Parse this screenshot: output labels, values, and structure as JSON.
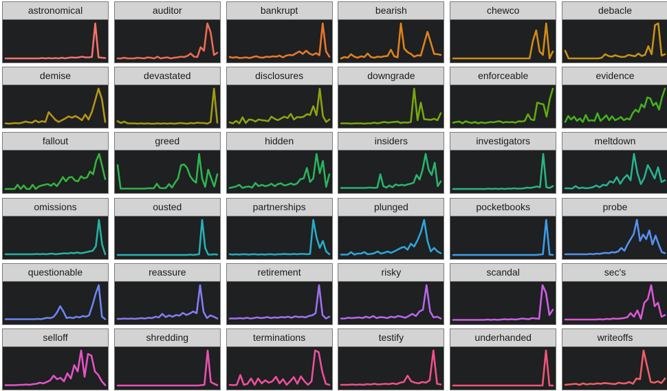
{
  "chart_data": [
    {
      "type": "line",
      "title": "astronomical",
      "color": "#f4736b",
      "values": [
        0,
        0,
        0,
        0,
        0,
        0,
        0,
        0,
        0,
        0,
        0,
        0.01,
        0,
        0.01,
        0,
        0.01,
        0,
        0.02,
        0,
        0.02,
        0.03,
        0.02,
        0.03,
        0.05,
        0.03,
        0.03,
        0.04,
        1.0,
        0.03,
        0.02,
        0.01
      ]
    },
    {
      "type": "line",
      "title": "auditor",
      "color": "#ef6b55",
      "values": [
        0,
        0,
        0.02,
        0,
        0,
        0,
        0.02,
        0.01,
        0,
        0.03,
        0.02,
        0,
        0.05,
        0,
        0.02,
        0.03,
        0,
        0.02,
        0.03,
        0.05,
        0.04,
        0.07,
        0.14,
        0.05,
        0.04,
        0.32,
        0.22,
        1.0,
        0.75,
        0.1,
        0.16
      ]
    },
    {
      "type": "line",
      "title": "bankrupt",
      "color": "#e9772c",
      "values": [
        0.04,
        0.02,
        0.04,
        0.01,
        0.02,
        0.03,
        0.01,
        0.04,
        0.06,
        0.03,
        0.02,
        0.05,
        0.04,
        0.06,
        0.05,
        0.08,
        0.03,
        0.08,
        0.1,
        0.09,
        0.15,
        0.2,
        0.13,
        0.22,
        0.14,
        0.1,
        0.15,
        0.09,
        1.0,
        0.2,
        0.05
      ]
    },
    {
      "type": "line",
      "title": "bearish",
      "color": "#e0821c",
      "values": [
        0,
        0.04,
        0.02,
        0.12,
        0.05,
        0.02,
        0.06,
        0.04,
        0.14,
        0.04,
        0.02,
        0.05,
        0.04,
        0.06,
        0.07,
        0.25,
        0.06,
        0.03,
        1.0,
        0.28,
        0.18,
        0.13,
        0.05,
        0.09,
        0.08,
        0.42,
        0.76,
        0.45,
        0.13,
        0.12,
        0.1
      ]
    },
    {
      "type": "line",
      "title": "chewco",
      "color": "#d18b18",
      "values": [
        0,
        0,
        0,
        0,
        0,
        0,
        0,
        0,
        0,
        0,
        0,
        0,
        0,
        0,
        0,
        0,
        0,
        0,
        0,
        0,
        0,
        0,
        0,
        0,
        0.5,
        0.8,
        0.2,
        0.1,
        1.0,
        0,
        0.2
      ]
    },
    {
      "type": "line",
      "title": "debacle",
      "color": "#c79318",
      "values": [
        0.22,
        0,
        0,
        0,
        0,
        0,
        0,
        0,
        0,
        0,
        0,
        0.02,
        0.12,
        0.07,
        0.05,
        0.09,
        0.06,
        0.04,
        0.05,
        0.1,
        0.08,
        0.06,
        0.14,
        0.07,
        0.1,
        0.35,
        0.12,
        0.95,
        1.0,
        0.08,
        0.12
      ]
    },
    {
      "type": "line",
      "title": "demise",
      "color": "#b69616",
      "values": [
        0.01,
        0,
        0.01,
        0.02,
        0.01,
        0.03,
        0.06,
        0.04,
        0.03,
        0.09,
        0.04,
        0.07,
        0.05,
        0.33,
        0.22,
        0.11,
        0.05,
        0.1,
        0.15,
        0.21,
        0.17,
        0.22,
        0.17,
        0.1,
        0.26,
        0.12,
        0.34,
        0.67,
        1.0,
        0.7,
        0.05
      ]
    },
    {
      "type": "line",
      "title": "devastated",
      "color": "#a29c12",
      "values": [
        0.07,
        0.02,
        0.06,
        0.01,
        0.01,
        0.01,
        0,
        0.01,
        0,
        0.01,
        0,
        0,
        0.01,
        0,
        0.01,
        0,
        0.01,
        0,
        0.01,
        0.02,
        0.01,
        0,
        0.02,
        0.01,
        0.03,
        0.02,
        0.02,
        0,
        0.05,
        1.0,
        0.03
      ]
    },
    {
      "type": "line",
      "title": "disclosures",
      "color": "#8fa20f",
      "values": [
        0.04,
        0.01,
        0.08,
        0.01,
        0.18,
        0.02,
        0.12,
        0.11,
        0.06,
        0.12,
        0.1,
        0.09,
        0.07,
        0.2,
        0.14,
        0.1,
        0.15,
        0.2,
        0.16,
        0.28,
        0.12,
        0.19,
        0.18,
        0.2,
        0.27,
        0.25,
        0.5,
        0.24,
        1.0,
        0.22,
        0.05,
        0.12
      ]
    },
    {
      "type": "line",
      "title": "downgrade",
      "color": "#78a70f",
      "values": [
        0.01,
        0.01,
        0.01,
        0,
        0.01,
        0.01,
        0.01,
        0,
        0.01,
        0.01,
        0.03,
        0.01,
        0.03,
        0.05,
        0.03,
        0.04,
        0.05,
        0.06,
        0.02,
        0.04,
        0.03,
        0.05,
        1.0,
        0.1,
        0.6,
        0.13,
        0.12,
        0.11,
        0.14,
        0.1,
        0.3
      ]
    },
    {
      "type": "line",
      "title": "enforceable",
      "color": "#5fac0f",
      "values": [
        0.03,
        0.05,
        0.06,
        0.01,
        0.07,
        0.04,
        0.02,
        0.05,
        0.01,
        0.04,
        0.02,
        0.03,
        0.05,
        0.04,
        0.06,
        0.07,
        0.03,
        0.05,
        0.04,
        0.05,
        0.03,
        0.07,
        0.06,
        0.08,
        0.27,
        0.12,
        0.1,
        0.6,
        0.57,
        0.55,
        0.2,
        0.7,
        1.0
      ]
    },
    {
      "type": "line",
      "title": "evidence",
      "color": "#45b01f",
      "values": [
        0.05,
        0.22,
        0.12,
        0.2,
        0.08,
        0.15,
        0.05,
        0.25,
        0.08,
        0.1,
        0.08,
        0.3,
        0.08,
        0.15,
        0.24,
        0.1,
        0.21,
        0.1,
        0.14,
        0.19,
        0.1,
        0.15,
        0.12,
        0.3,
        0.4,
        0.33,
        0.55,
        0.46,
        0.75,
        0.72,
        0.52,
        0.6,
        0.4,
        0.75,
        1.0
      ]
    },
    {
      "type": "line",
      "title": "fallout",
      "color": "#34b33d",
      "values": [
        0,
        0,
        0,
        0,
        0.12,
        0,
        0.1,
        0,
        0,
        0.12,
        0,
        0.07,
        0.1,
        0.12,
        0.14,
        0.09,
        0.16,
        0.08,
        0.2,
        0.34,
        0.22,
        0.33,
        0.34,
        0.24,
        0.22,
        0.36,
        0.3,
        0.33,
        0.5,
        0.42,
        0.8,
        1.0,
        0.65,
        0.28
      ]
    },
    {
      "type": "line",
      "title": "greed",
      "color": "#2eb44e",
      "values": [
        0.68,
        0.01,
        0.01,
        0.01,
        0.01,
        0.01,
        0.01,
        0.01,
        0.01,
        0.01,
        0.02,
        0.02,
        0.02,
        0.15,
        0.03,
        0.02,
        0.03,
        0.14,
        0.04,
        0.18,
        0.3,
        0.68,
        0.7,
        0.6,
        0.37,
        0.25,
        0.18,
        1.0,
        0.3,
        0.06,
        0.55,
        0.3,
        0.07,
        0.42
      ]
    },
    {
      "type": "line",
      "title": "hidden",
      "color": "#2ab45c",
      "values": [
        0.03,
        0.05,
        0.07,
        0.12,
        0.03,
        0.06,
        0.07,
        0.04,
        0.17,
        0.08,
        0.12,
        0.08,
        0.1,
        0.15,
        0.08,
        0.14,
        0.16,
        0.1,
        0.12,
        0.16,
        0.12,
        0.16,
        0.28,
        0.3,
        0.6,
        0.2,
        0.3,
        1.0,
        0.45,
        0.8,
        0.06,
        0.42
      ]
    },
    {
      "type": "line",
      "title": "insiders",
      "color": "#29b46d",
      "values": [
        0.03,
        0.03,
        0.03,
        0.03,
        0.03,
        0.03,
        0.03,
        0.03,
        0.03,
        0.04,
        0.04,
        0.03,
        0.04,
        0.42,
        0.08,
        0.04,
        0.1,
        0.05,
        0.13,
        0.1,
        0.12,
        0.1,
        0.13,
        0.15,
        0.18,
        0.4,
        0.27,
        0.55,
        1.0,
        0.55,
        0.4,
        0.75,
        0.08,
        0.22
      ]
    },
    {
      "type": "line",
      "title": "investigators",
      "color": "#28b57f",
      "values": [
        0,
        0,
        0,
        0,
        0,
        0,
        0,
        0,
        0,
        0,
        0,
        0.01,
        0,
        0.01,
        0,
        0.01,
        0,
        0.01,
        0.01,
        0.02,
        0.01,
        0.01,
        0.02,
        0.04,
        0.03,
        0.05,
        0.07,
        0.05,
        1.0,
        0.05,
        0.03,
        0.08
      ]
    },
    {
      "type": "line",
      "title": "meltdown",
      "color": "#27b392",
      "values": [
        0.02,
        0.02,
        0.01,
        0.08,
        0.02,
        0.04,
        0.02,
        0.03,
        0.05,
        0.1,
        0.05,
        0.12,
        0.1,
        0.22,
        0.18,
        0.34,
        0.15,
        0.3,
        0.4,
        0.25,
        1.0,
        0.45,
        0.14,
        0.32,
        0.68,
        0.5,
        0.3,
        0.62,
        0.2,
        0.25
      ]
    },
    {
      "type": "line",
      "title": "omissions",
      "color": "#26b2a4",
      "values": [
        0.02,
        0.02,
        0.02,
        0.02,
        0.02,
        0.02,
        0.02,
        0.02,
        0.02,
        0.02,
        0.03,
        0.02,
        0.03,
        0.02,
        0.03,
        0.04,
        0.02,
        0.03,
        0.04,
        0.05,
        0.04,
        0.06,
        0.05,
        0.07,
        0.05,
        0.06,
        0.08,
        0.1,
        0.12,
        0.25,
        1.0,
        0.3,
        0.02
      ]
    },
    {
      "type": "line",
      "title": "ousted",
      "color": "#25b0b6",
      "values": [
        0,
        0,
        0,
        0,
        0,
        0,
        0,
        0,
        0,
        0,
        0,
        0,
        0,
        0,
        0,
        0,
        0,
        0,
        0,
        0,
        0,
        0,
        0,
        0,
        0.01,
        0,
        0.01,
        0.02,
        1.0,
        0.2,
        0.01,
        0.01,
        0.02,
        0.01
      ]
    },
    {
      "type": "line",
      "title": "partnerships",
      "color": "#27acc7",
      "values": [
        0.02,
        0.01,
        0.02,
        0.01,
        0.02,
        0.02,
        0.01,
        0.02,
        0.02,
        0.01,
        0.02,
        0.01,
        0.02,
        0.02,
        0.01,
        0.02,
        0.02,
        0.03,
        0.02,
        0.02,
        0.03,
        0.02,
        0.03,
        0.03,
        0.02,
        0.03,
        1.0,
        0.5,
        0.2,
        0.4,
        0.1,
        0.02
      ]
    },
    {
      "type": "line",
      "title": "plunged",
      "color": "#2ca6db",
      "values": [
        0.01,
        0.01,
        0.01,
        0.08,
        0.01,
        0.04,
        0.04,
        0.08,
        0.02,
        0.03,
        0.05,
        0.1,
        0.04,
        0.06,
        0.1,
        0.06,
        0.1,
        0.15,
        0.2,
        0.23,
        0.15,
        0.32,
        0.24,
        0.42,
        0.65,
        1.0,
        0.4,
        0.1,
        0.2,
        0.1,
        0.05
      ]
    },
    {
      "type": "line",
      "title": "pocketbooks",
      "color": "#3b9ded",
      "values": [
        0,
        0,
        0,
        0,
        0,
        0,
        0,
        0,
        0,
        0,
        0,
        0,
        0,
        0,
        0,
        0,
        0,
        0,
        0,
        0,
        0,
        0,
        0,
        0,
        0,
        0,
        0.01,
        0.02,
        1.0,
        0.01,
        0
      ]
    },
    {
      "type": "line",
      "title": "probe",
      "color": "#5591f2",
      "values": [
        0.02,
        0.02,
        0.02,
        0.02,
        0.02,
        0.02,
        0.02,
        0.02,
        0.03,
        0.02,
        0.04,
        0.03,
        0.05,
        0.06,
        0.05,
        0.08,
        0.07,
        0.1,
        0.2,
        0.12,
        0.3,
        0.45,
        0.6,
        1.0,
        0.4,
        0.58,
        0.45,
        0.7,
        0.3,
        0.55,
        0.3,
        0.08,
        0.05
      ]
    },
    {
      "type": "line",
      "title": "questionable",
      "color": "#6d86f3",
      "values": [
        0.03,
        0.03,
        0.03,
        0.03,
        0.03,
        0.03,
        0.03,
        0.03,
        0.03,
        0.03,
        0.04,
        0.03,
        0.05,
        0.07,
        0.06,
        0.1,
        0.22,
        0.4,
        0.25,
        0.06,
        0.08,
        0.06,
        0.1,
        0.08,
        0.12,
        0.1,
        0.14,
        0.42,
        0.75,
        1.0,
        0.1,
        0.03
      ]
    },
    {
      "type": "line",
      "title": "reassure",
      "color": "#877bf3",
      "values": [
        0.04,
        0.04,
        0.05,
        0.04,
        0.05,
        0.04,
        0.05,
        0.06,
        0.05,
        0.07,
        0.06,
        0.1,
        0.08,
        0.18,
        0.09,
        0.14,
        0.1,
        0.15,
        0.13,
        0.21,
        0.15,
        0.19,
        0.25,
        0.2,
        1.0,
        0.24,
        0.06,
        0.14,
        0.1,
        0.05
      ]
    },
    {
      "type": "line",
      "title": "retirement",
      "color": "#9f70f1",
      "values": [
        0.05,
        0.05,
        0.05,
        0.06,
        0.05,
        0.07,
        0.05,
        0.06,
        0.08,
        0.06,
        0.07,
        0.09,
        0.06,
        0.08,
        0.07,
        0.09,
        0.08,
        0.1,
        0.07,
        0.11,
        0.09,
        0.1,
        0.08,
        0.12,
        0.14,
        0.2,
        1.0,
        0.15,
        0.05,
        0.1
      ]
    },
    {
      "type": "line",
      "title": "risky",
      "color": "#b766ec",
      "values": [
        0.05,
        0.05,
        0.07,
        0.06,
        0.07,
        0.08,
        0.06,
        0.1,
        0.07,
        0.12,
        0.06,
        0.09,
        0.08,
        0.06,
        0.1,
        0.08,
        0.12,
        0.1,
        0.07,
        0.12,
        0.18,
        0.12,
        0.25,
        0.3,
        1.0,
        0.25,
        0.08,
        0.1,
        0.05
      ]
    },
    {
      "type": "line",
      "title": "scandal",
      "color": "#cd5ee6",
      "values": [
        0.01,
        0.01,
        0.01,
        0.01,
        0.01,
        0.01,
        0.01,
        0.01,
        0.01,
        0.01,
        0.02,
        0.01,
        0.02,
        0.01,
        0.02,
        0.03,
        0.02,
        0.03,
        0.02,
        0.03,
        0.05,
        0.04,
        0.03,
        0.06,
        0.05,
        0.04,
        1.0,
        0.78,
        0.15,
        0.3
      ]
    },
    {
      "type": "line",
      "title": "sec's",
      "color": "#dc57d8",
      "values": [
        0.02,
        0.02,
        0.02,
        0.02,
        0.02,
        0.02,
        0.02,
        0.02,
        0.02,
        0.02,
        0.03,
        0.02,
        0.04,
        0.03,
        0.05,
        0.04,
        0.05,
        0.06,
        0.08,
        0.2,
        0.1,
        0.28,
        0.04,
        0.5,
        0.6,
        1.0,
        0.4,
        0.5,
        0.1,
        0.15
      ]
    },
    {
      "type": "line",
      "title": "selloff",
      "color": "#e652c7",
      "values": [
        0.01,
        0.01,
        0.01,
        0.01,
        0.02,
        0.02,
        0.03,
        0.02,
        0.04,
        0.05,
        0.08,
        0.06,
        0.1,
        0.15,
        0.28,
        0.18,
        0.22,
        0.12,
        0.35,
        0.2,
        0.58,
        0.4,
        1.0,
        0.25,
        0.9,
        0.85,
        0.4,
        0.3,
        0.12,
        0.01
      ]
    },
    {
      "type": "line",
      "title": "shredding",
      "color": "#ed4fb2",
      "values": [
        0,
        0,
        0,
        0,
        0,
        0,
        0,
        0,
        0,
        0,
        0,
        0,
        0,
        0,
        0,
        0,
        0,
        0,
        0,
        0,
        0,
        0,
        0,
        0,
        0,
        0,
        0.01,
        0.02,
        1.0,
        0.1,
        0.05,
        0.01
      ]
    },
    {
      "type": "line",
      "title": "terminations",
      "color": "#ef4f9e",
      "values": [
        0.02,
        0.01,
        0.02,
        0.3,
        0.02,
        0.05,
        0.2,
        0.02,
        0.2,
        0.06,
        0.15,
        0.08,
        0.12,
        0.25,
        0.06,
        0.18,
        0.02,
        0.12,
        0.24,
        0.05,
        0.26,
        0.12,
        0.02,
        0.12,
        1.0,
        0.95,
        0.4,
        0.05,
        0.02
      ]
    },
    {
      "type": "line",
      "title": "testify",
      "color": "#f0508b",
      "values": [
        0.02,
        0.02,
        0.02,
        0.03,
        0.02,
        0.03,
        0.02,
        0.04,
        0.03,
        0.05,
        0.03,
        0.04,
        0.05,
        0.04,
        0.06,
        0.04,
        0.08,
        0.1,
        0.28,
        0.12,
        0.08,
        0.06,
        0.1,
        0.08,
        0.15,
        1.0,
        0.05,
        0.03
      ]
    },
    {
      "type": "line",
      "title": "underhanded",
      "color": "#f15479",
      "values": [
        0,
        0,
        0,
        0,
        0,
        0,
        0,
        0,
        0,
        0,
        0,
        0,
        0,
        0,
        0,
        0,
        0,
        0,
        0,
        0,
        0,
        0,
        0,
        0,
        0,
        0,
        0,
        1.0,
        0,
        0
      ]
    },
    {
      "type": "line",
      "title": "writeoffs",
      "color": "#f05e66",
      "values": [
        0.02,
        0.03,
        0.04,
        0.05,
        0.02,
        0.06,
        0.03,
        0.05,
        0.04,
        0.06,
        0.05,
        0.07,
        0.06,
        0.05,
        0.04,
        0.08,
        0.06,
        0.06,
        0.1,
        0.05,
        0.2,
        0.18,
        1.0,
        0.55,
        0.1,
        0.08,
        0.12,
        0.07,
        0.2
      ]
    }
  ]
}
